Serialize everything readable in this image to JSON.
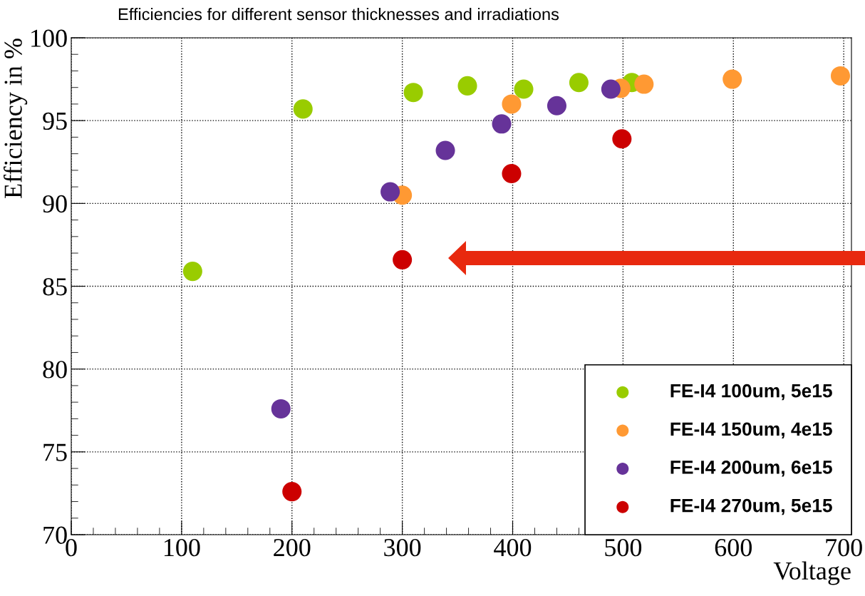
{
  "chart_data": {
    "type": "scatter",
    "title": "Efficiencies for different sensor thicknesses and irradiations",
    "xlabel": "Voltage",
    "ylabel": "Efficiency in %",
    "xlim": [
      0,
      707
    ],
    "ylim": [
      70,
      100
    ],
    "xticks": [
      0,
      100,
      200,
      300,
      400,
      500,
      600,
      700
    ],
    "yticks": [
      70,
      75,
      80,
      85,
      90,
      95,
      100
    ],
    "grid": true,
    "legend": "bottom right",
    "marker": "circle",
    "series": [
      {
        "name": "FE-I4 100um, 5e15",
        "color": "#99cc00",
        "x": [
          110,
          210,
          310,
          359,
          410,
          460,
          508
        ],
        "values": [
          85.9,
          95.7,
          96.7,
          97.1,
          96.9,
          97.3,
          97.3
        ]
      },
      {
        "name": "FE-I4 150um, 4e15",
        "color": "#ff9933",
        "x": [
          300,
          399,
          498,
          519,
          599,
          697
        ],
        "values": [
          90.5,
          96.0,
          96.95,
          97.2,
          97.5,
          97.7
        ]
      },
      {
        "name": "FE-I4 200um, 6e15",
        "color": "#663399",
        "x": [
          190,
          289,
          339,
          390,
          440,
          489
        ],
        "values": [
          77.6,
          90.7,
          93.2,
          94.8,
          95.9,
          96.9
        ]
      },
      {
        "name": "FE-I4 270um, 5e15",
        "color": "#cc0000",
        "x": [
          200,
          300,
          399,
          499
        ],
        "values": [
          72.6,
          86.6,
          91.8,
          93.9
        ]
      }
    ]
  }
}
